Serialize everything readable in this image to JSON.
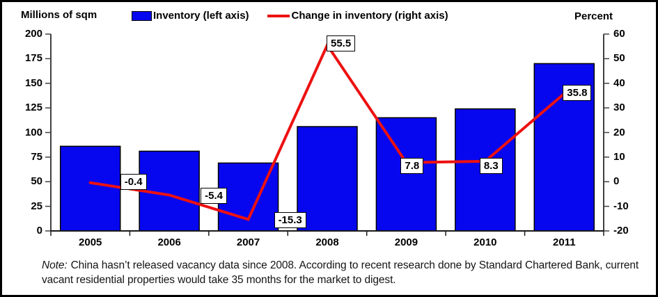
{
  "chart_data": {
    "type": "bar+line combo",
    "categories": [
      "2005",
      "2006",
      "2007",
      "2008",
      "2009",
      "2010",
      "2011"
    ],
    "series": [
      {
        "name": "Inventory (left axis)",
        "type": "bar",
        "axis": "left",
        "values": [
          86,
          81,
          69,
          106,
          115,
          124,
          170
        ]
      },
      {
        "name": "Change in inventory (right axis)",
        "type": "line",
        "axis": "right",
        "values": [
          -0.4,
          -5.4,
          -15.3,
          55.5,
          7.8,
          8.3,
          35.8
        ]
      }
    ],
    "data_labels": [
      "-0.4",
      "-5.4",
      "-15.3",
      "55.5",
      "7.8",
      "8.3",
      "35.8"
    ],
    "left_axis": {
      "title": "Millions of sqm",
      "min": 0,
      "max": 200,
      "step": 25,
      "ticks": [
        0,
        25,
        50,
        75,
        100,
        125,
        150,
        175,
        200
      ]
    },
    "right_axis": {
      "title": "Percent",
      "min": -20,
      "max": 60,
      "step": 10,
      "ticks": [
        -20,
        -10,
        0,
        10,
        20,
        30,
        40,
        50,
        60
      ]
    },
    "legend_position": "top",
    "grid": false
  },
  "colors": {
    "bar": "#0707EF",
    "bar_border": "#000000",
    "line": "#ED1111",
    "axis": "#404040",
    "text": "#000000",
    "label_box_bg": "#FFFFFF",
    "label_box_border": "#000000"
  },
  "note": {
    "prefix": "Note:",
    "body": "China hasn’t released vacancy data since 2008. According to recent research done by Standard Chartered Bank, current vacant residential properties would take 35 months for the market to digest."
  }
}
